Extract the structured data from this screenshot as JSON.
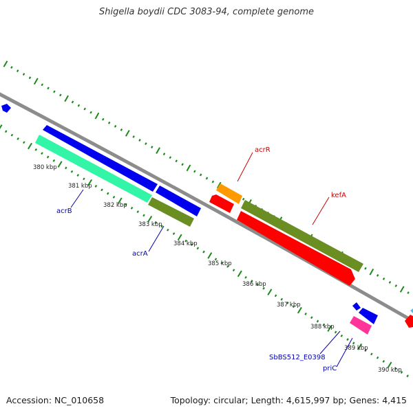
{
  "title": "Shigella boydii CDC 3083-94, complete genome",
  "footer": {
    "accession": "Accession: NC_010658",
    "summary": "Topology: circular; Length: 4,615,997 bp; Genes: 4,415"
  },
  "kbp_ticks": [
    "380 kbp",
    "381 kbp",
    "382 kbp",
    "383 kbp",
    "384 kbp",
    "385 kbp",
    "386 kbp",
    "387 kbp",
    "388 kbp",
    "389 kbp",
    "390 kbp"
  ],
  "genes": {
    "acrB": "acrB",
    "acrA": "acrA",
    "acrR": "acrR",
    "kefA": "kefA",
    "sbbs": "SbBS512_E0398",
    "priC": "priC"
  },
  "colors": {
    "backbone": "#8c8c8c",
    "tick": "#1a8a1a",
    "blue": "#0000ee",
    "mint": "#33f5a8",
    "olive": "#6b8e23",
    "red": "#ff0000",
    "orange": "#ff9900",
    "magenta": "#ff3399",
    "cyan": "#55bbee",
    "blue_label": "#0000aa",
    "red_label": "#cc0000"
  }
}
